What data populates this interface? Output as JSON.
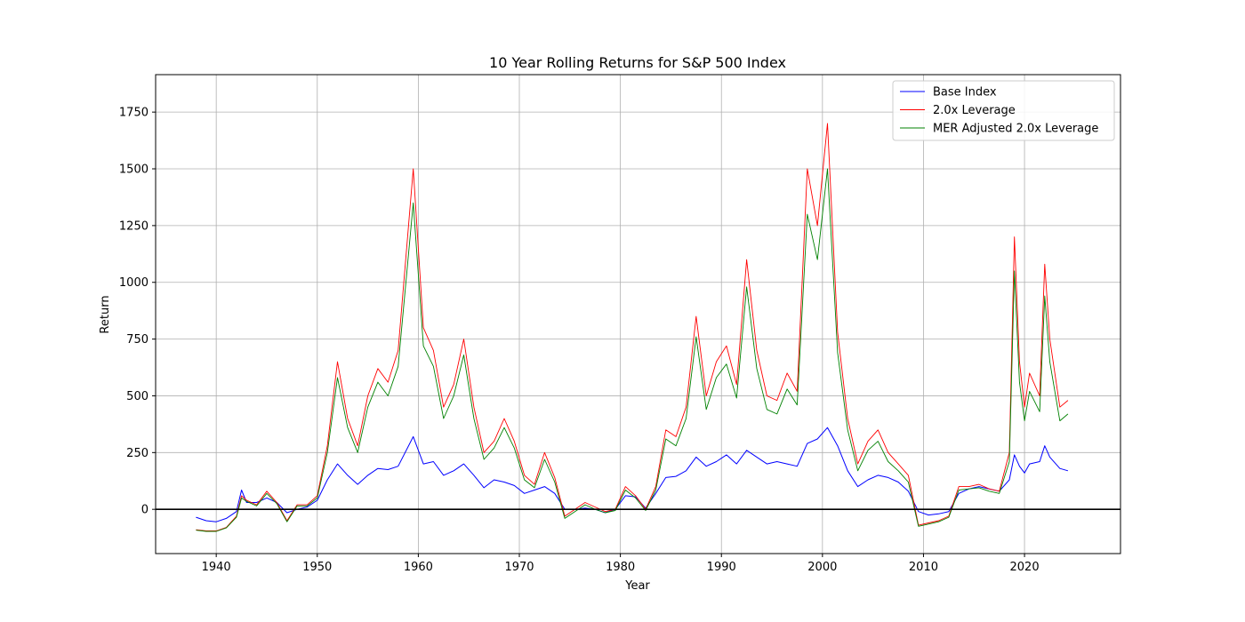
{
  "chart_data": {
    "type": "line",
    "title": "10 Year Rolling Returns for S&P 500 Index",
    "xlabel": "Year",
    "ylabel": "Return",
    "xlim": [
      1934,
      2029.5
    ],
    "ylim": [
      -195,
      1915
    ],
    "x_ticks": [
      1940,
      1950,
      1960,
      1970,
      1980,
      1990,
      2000,
      2010,
      2020
    ],
    "y_ticks": [
      0,
      250,
      500,
      750,
      1000,
      1250,
      1500,
      1750
    ],
    "grid": true,
    "legend_position": "top-right",
    "reference_line": {
      "y": 0,
      "color": "#000000"
    },
    "series": [
      {
        "name": "Base Index",
        "color": "#0000ff",
        "x": [
          1938.0,
          1939.0,
          1940.0,
          1941.0,
          1942.0,
          1942.5,
          1943.0,
          1944.0,
          1945.0,
          1946.0,
          1947.0,
          1948.0,
          1949.0,
          1950.0,
          1951.0,
          1952.0,
          1953.0,
          1954.0,
          1955.0,
          1956.0,
          1957.0,
          1958.0,
          1959.5,
          1960.5,
          1961.5,
          1962.5,
          1963.5,
          1964.5,
          1965.5,
          1966.5,
          1967.5,
          1968.5,
          1969.5,
          1970.5,
          1971.5,
          1972.5,
          1973.5,
          1974.5,
          1975.5,
          1976.5,
          1977.5,
          1978.5,
          1979.5,
          1980.5,
          1981.5,
          1982.5,
          1983.5,
          1984.5,
          1985.5,
          1986.5,
          1987.5,
          1988.5,
          1989.5,
          1990.5,
          1991.5,
          1992.5,
          1993.5,
          1994.5,
          1995.5,
          1996.5,
          1997.5,
          1998.5,
          1999.5,
          2000.5,
          2001.5,
          2002.5,
          2003.5,
          2004.5,
          2005.5,
          2006.5,
          2007.5,
          2008.5,
          2009.5,
          2010.5,
          2011.5,
          2012.5,
          2013.5,
          2014.5,
          2015.5,
          2016.5,
          2017.5,
          2018.5,
          2019.0,
          2019.5,
          2020.0,
          2020.5,
          2021.5,
          2022.0,
          2022.5,
          2023.5,
          2024.3
        ],
        "values": [
          -35,
          -50,
          -55,
          -40,
          -10,
          85,
          30,
          30,
          50,
          30,
          -15,
          0,
          10,
          40,
          130,
          200,
          150,
          110,
          150,
          180,
          175,
          190,
          320,
          200,
          210,
          150,
          170,
          200,
          150,
          95,
          130,
          120,
          105,
          70,
          85,
          100,
          70,
          0,
          0,
          5,
          0,
          -15,
          0,
          60,
          55,
          5,
          70,
          140,
          145,
          170,
          230,
          190,
          210,
          240,
          200,
          260,
          230,
          200,
          210,
          200,
          190,
          290,
          310,
          360,
          280,
          170,
          100,
          130,
          150,
          140,
          120,
          80,
          -10,
          -25,
          -20,
          -10,
          70,
          90,
          100,
          90,
          80,
          130,
          240,
          190,
          160,
          200,
          210,
          280,
          230,
          180,
          170
        ]
      },
      {
        "name": "2.0x Leverage",
        "color": "#ff0000",
        "x": [
          1938.0,
          1939.0,
          1940.0,
          1941.0,
          1942.0,
          1942.5,
          1943.0,
          1944.0,
          1945.0,
          1946.0,
          1947.0,
          1948.0,
          1949.0,
          1950.0,
          1951.0,
          1952.0,
          1953.0,
          1954.0,
          1955.0,
          1956.0,
          1957.0,
          1958.0,
          1959.5,
          1960.5,
          1961.5,
          1962.5,
          1963.5,
          1964.5,
          1965.5,
          1966.5,
          1967.5,
          1968.5,
          1969.5,
          1970.5,
          1971.5,
          1972.5,
          1973.5,
          1974.5,
          1975.5,
          1976.5,
          1977.5,
          1978.5,
          1979.5,
          1980.5,
          1981.5,
          1982.5,
          1983.5,
          1984.5,
          1985.5,
          1986.5,
          1987.5,
          1988.5,
          1989.5,
          1990.5,
          1991.5,
          1992.5,
          1993.5,
          1994.5,
          1995.5,
          1996.5,
          1997.5,
          1998.5,
          1999.5,
          2000.5,
          2001.5,
          2002.5,
          2003.5,
          2004.5,
          2005.5,
          2006.5,
          2007.5,
          2008.5,
          2009.5,
          2010.5,
          2011.5,
          2012.5,
          2013.5,
          2014.5,
          2015.5,
          2016.5,
          2017.5,
          2018.5,
          2019.0,
          2019.5,
          2020.0,
          2020.5,
          2021.5,
          2022.0,
          2022.5,
          2023.5,
          2024.3
        ],
        "values": [
          -90,
          -95,
          -95,
          -80,
          -30,
          60,
          40,
          20,
          80,
          30,
          -50,
          20,
          20,
          60,
          280,
          650,
          400,
          280,
          500,
          620,
          560,
          700,
          1500,
          800,
          700,
          450,
          550,
          750,
          450,
          250,
          300,
          400,
          300,
          150,
          110,
          250,
          140,
          -30,
          0,
          30,
          10,
          -10,
          0,
          100,
          60,
          0,
          100,
          350,
          320,
          450,
          850,
          500,
          650,
          720,
          550,
          1100,
          700,
          500,
          480,
          600,
          520,
          1500,
          1250,
          1700,
          780,
          400,
          200,
          300,
          350,
          250,
          200,
          150,
          -70,
          -60,
          -50,
          -30,
          100,
          100,
          110,
          90,
          80,
          250,
          1200,
          650,
          450,
          600,
          500,
          1080,
          750,
          450,
          480
        ]
      },
      {
        "name": "MER Adjusted 2.0x Leverage",
        "color": "#008000",
        "x": [
          1938.0,
          1939.0,
          1940.0,
          1941.0,
          1942.0,
          1942.5,
          1943.0,
          1944.0,
          1945.0,
          1946.0,
          1947.0,
          1948.0,
          1949.0,
          1950.0,
          1951.0,
          1952.0,
          1953.0,
          1954.0,
          1955.0,
          1956.0,
          1957.0,
          1958.0,
          1959.5,
          1960.5,
          1961.5,
          1962.5,
          1963.5,
          1964.5,
          1965.5,
          1966.5,
          1967.5,
          1968.5,
          1969.5,
          1970.5,
          1971.5,
          1972.5,
          1973.5,
          1974.5,
          1975.5,
          1976.5,
          1977.5,
          1978.5,
          1979.5,
          1980.5,
          1981.5,
          1982.5,
          1983.5,
          1984.5,
          1985.5,
          1986.5,
          1987.5,
          1988.5,
          1989.5,
          1990.5,
          1991.5,
          1992.5,
          1993.5,
          1994.5,
          1995.5,
          1996.5,
          1997.5,
          1998.5,
          1999.5,
          2000.5,
          2001.5,
          2002.5,
          2003.5,
          2004.5,
          2005.5,
          2006.5,
          2007.5,
          2008.5,
          2009.5,
          2010.5,
          2011.5,
          2012.5,
          2013.5,
          2014.5,
          2015.5,
          2016.5,
          2017.5,
          2018.5,
          2019.0,
          2019.5,
          2020.0,
          2020.5,
          2021.5,
          2022.0,
          2022.5,
          2023.5,
          2024.3
        ],
        "values": [
          -92,
          -97,
          -97,
          -82,
          -35,
          50,
          35,
          15,
          70,
          25,
          -55,
          15,
          15,
          50,
          250,
          580,
          360,
          250,
          450,
          560,
          500,
          630,
          1350,
          720,
          630,
          400,
          500,
          680,
          400,
          220,
          270,
          360,
          270,
          130,
          95,
          220,
          120,
          -40,
          -10,
          20,
          0,
          -15,
          -5,
          85,
          50,
          -5,
          85,
          310,
          280,
          400,
          760,
          440,
          580,
          640,
          490,
          980,
          620,
          440,
          420,
          530,
          460,
          1300,
          1100,
          1500,
          690,
          350,
          170,
          260,
          300,
          210,
          170,
          120,
          -75,
          -65,
          -55,
          -35,
          85,
          90,
          95,
          80,
          70,
          210,
          1050,
          560,
          390,
          520,
          430,
          940,
          650,
          390,
          420
        ]
      }
    ]
  }
}
